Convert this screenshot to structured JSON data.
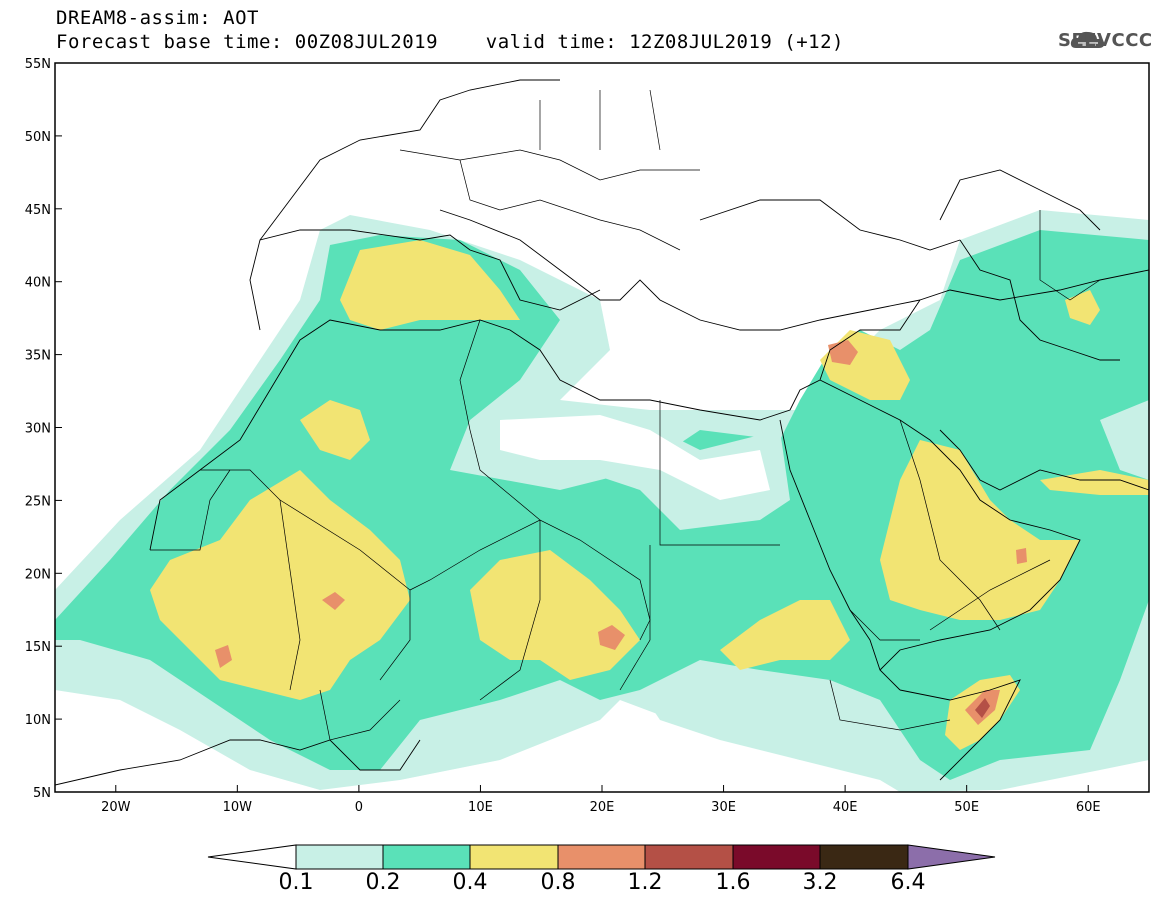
{
  "header": {
    "line1": "DREAM8-assim: AOT",
    "line2": "Forecast base time: 00Z08JUL2019    valid time: 12Z08JUL2019 (+12)"
  },
  "logo": {
    "text": "SEEVCCC",
    "icon": "cloud-icon"
  },
  "map": {
    "lon_range": [
      -25,
      65
    ],
    "lat_range": [
      5,
      55
    ],
    "lat_ticks": [
      "55N",
      "50N",
      "45N",
      "40N",
      "35N",
      "30N",
      "25N",
      "20N",
      "15N",
      "10N",
      "5N"
    ],
    "lon_ticks": [
      "20W",
      "10W",
      "0",
      "10E",
      "20E",
      "30E",
      "40E",
      "50E",
      "60E"
    ]
  },
  "colorbar": {
    "labels": [
      "0.1",
      "0.2",
      "0.4",
      "0.8",
      "1.2",
      "1.6",
      "3.2",
      "6.4"
    ],
    "colors": [
      "#ffffff",
      "#c8f0e6",
      "#5ae1b8",
      "#f2e473",
      "#e8906a",
      "#b45046",
      "#7a0a2a",
      "#3a2814",
      "#8c6eaa"
    ]
  }
}
